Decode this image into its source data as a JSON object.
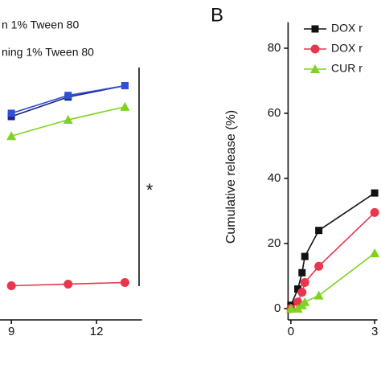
{
  "chart_data": [
    {
      "type": "line",
      "legend_texts": [
        "n 1% Tween 80",
        "ning 1% Tween 80"
      ],
      "x": [
        9,
        11,
        13
      ],
      "xlim": [
        8.6,
        13.6
      ],
      "xticks": [
        9,
        12
      ],
      "ylim": [
        -3.5,
        88
      ],
      "series": [
        {
          "name": "n 1% Tween 80",
          "color": "#1a237e",
          "marker": "square",
          "values": [
            59,
            65,
            68.5
          ]
        },
        {
          "name": "ning 1% Tween 80",
          "color": "#2f4fd8",
          "marker": "square",
          "values": [
            60,
            65.5,
            68.5
          ]
        },
        {
          "color": "#7ed321",
          "marker": "triangle",
          "values": [
            53,
            58,
            62
          ]
        },
        {
          "color": "#e8364c",
          "marker": "circle",
          "values": [
            7,
            7.5,
            8
          ]
        }
      ],
      "annotation": "*"
    },
    {
      "type": "line",
      "panel_label": "B",
      "y_label": "Cumulative release (%)",
      "x": [
        0,
        0.25,
        0.4,
        0.5,
        1,
        3
      ],
      "xlim": [
        -0.1,
        3.1
      ],
      "xticks": [
        0,
        3
      ],
      "ylim": [
        -3.5,
        88
      ],
      "yticks": [
        0,
        20,
        40,
        60,
        80
      ],
      "series": [
        {
          "name": "DOX r",
          "color": "#111111",
          "marker": "square",
          "values": [
            1,
            6,
            11,
            16,
            24,
            35.5
          ]
        },
        {
          "name": "DOX r",
          "color": "#e8364c",
          "marker": "circle",
          "values": [
            0,
            2,
            5,
            8,
            13,
            29.5
          ]
        },
        {
          "name": "CUR r",
          "color": "#7ed321",
          "marker": "triangle",
          "values": [
            0,
            0,
            1,
            2,
            4,
            17
          ]
        }
      ]
    }
  ]
}
